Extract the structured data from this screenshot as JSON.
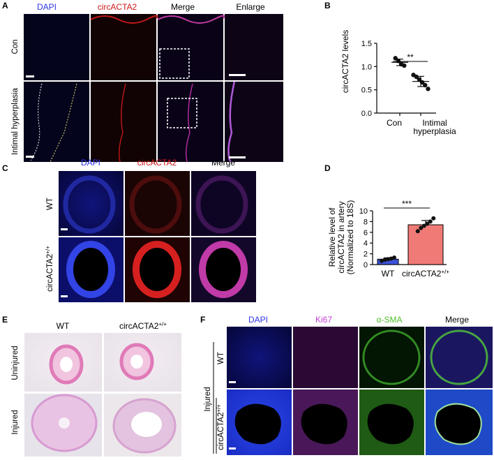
{
  "colors": {
    "dapi": "#2e35e6",
    "circ": "#d21717",
    "ki67": "#c33bd6",
    "sma": "#4fbf28",
    "bar_wt": "#3a52d8",
    "bar_circ": "#f07a76"
  },
  "panelA": {
    "label": "A",
    "columns": [
      "DAPI",
      "circACTA2",
      "Merge",
      "Enlarge"
    ],
    "rows": [
      "Con",
      "Intimal hyperplasia"
    ]
  },
  "panelB": {
    "label": "B",
    "significance": "**"
  },
  "panelC": {
    "label": "C",
    "columns": [
      "DAPI",
      "circACTA2",
      "Merge"
    ],
    "rows": [
      "WT",
      "circACTA2"
    ],
    "row_superscript": "+/+"
  },
  "panelD": {
    "label": "D",
    "significance": "***",
    "cat2_superscript": "+/+"
  },
  "panelE": {
    "label": "E",
    "columns": [
      "WT",
      "circACTA2"
    ],
    "column_superscript": "+/+",
    "rows": [
      "Uninjured",
      "Injured"
    ]
  },
  "panelF": {
    "label": "F",
    "columns": [
      "DAPI",
      "Ki67",
      "α-SMA",
      "Merge"
    ],
    "group_label": "Injured",
    "rows": [
      "WT",
      "circACTA2"
    ],
    "row_superscript": "+/+"
  },
  "chart_data": [
    {
      "panel": "B",
      "type": "scatter",
      "categories": [
        "Con",
        "Intimal hyperplasia"
      ],
      "category_lines": [
        [
          "Con"
        ],
        [
          "Intimal",
          "hyperplasia"
        ]
      ],
      "ylabel": "circACTA2 levels",
      "ylim": [
        0,
        1.5
      ],
      "yticks": [
        0.0,
        0.5,
        1.0,
        1.5
      ],
      "ytick_labels": [
        "0.0",
        "0.5",
        "1.0",
        "1.5"
      ],
      "series": [
        {
          "values": [
            1.18,
            1.12,
            1.05,
            1.02
          ]
        },
        {
          "values": [
            0.82,
            0.78,
            0.72,
            0.66,
            0.6,
            0.52
          ]
        }
      ],
      "means": [
        1.09,
        0.68
      ],
      "sd": [
        0.07,
        0.11
      ],
      "significance": "**"
    },
    {
      "panel": "D",
      "type": "bar",
      "categories": [
        "WT",
        "circACTA2+/+"
      ],
      "category_lines": [
        [
          "WT"
        ],
        [
          "circACTA2"
        ]
      ],
      "ylabel_lines": [
        "Relative level of",
        "circACTA2 in artery",
        "(Normalized to 18S)"
      ],
      "ylim": [
        0,
        10
      ],
      "yticks": [
        0,
        2,
        4,
        6,
        8,
        10
      ],
      "ytick_labels": [
        "0",
        "2",
        "4",
        "6",
        "8",
        "10"
      ],
      "values": [
        1.0,
        7.4
      ],
      "errors": [
        0.25,
        0.8
      ],
      "points": [
        [
          0.7,
          0.9,
          1.0,
          1.1,
          1.3
        ],
        [
          6.2,
          6.8,
          7.2,
          7.6,
          8.0,
          8.6
        ]
      ],
      "significance": "***"
    }
  ]
}
